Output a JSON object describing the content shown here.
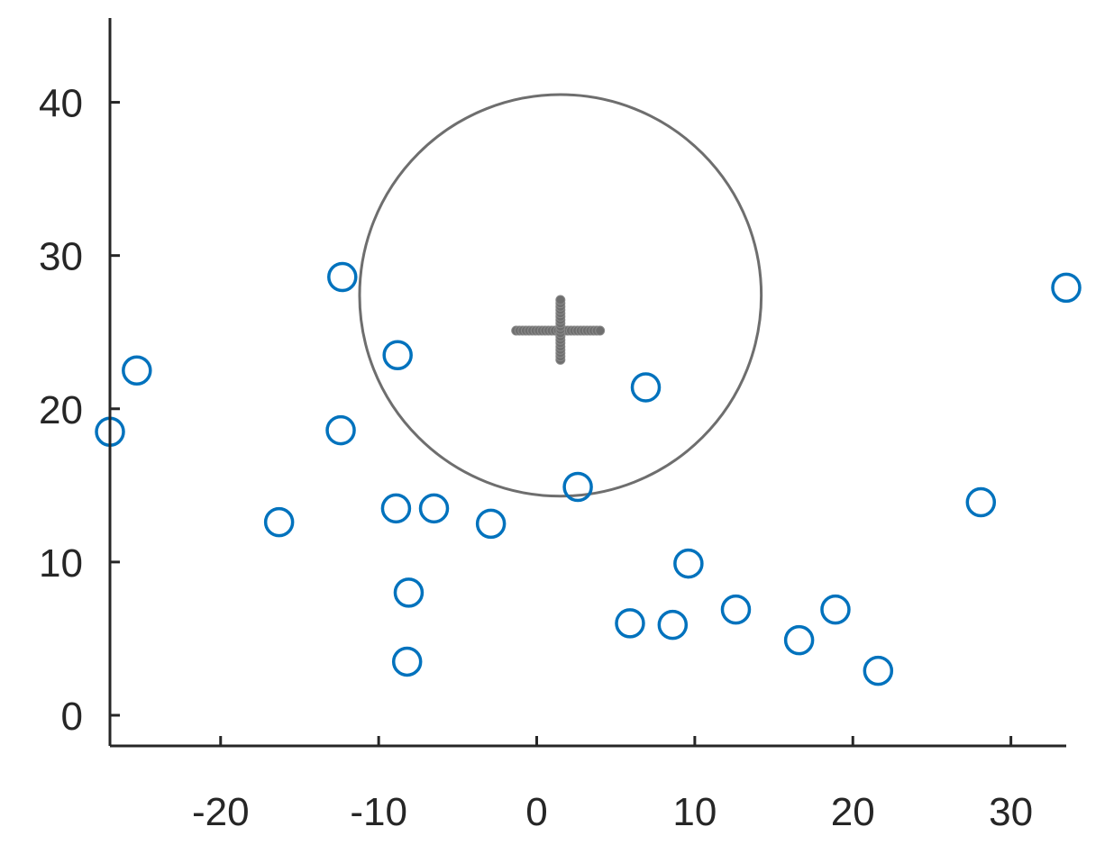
{
  "chart_data": {
    "type": "scatter",
    "title": "",
    "xlabel": "",
    "ylabel": "",
    "xlim": [
      -27,
      33.5
    ],
    "ylim": [
      -2,
      45.5
    ],
    "xticks": [
      -20,
      -10,
      0,
      10,
      20,
      30
    ],
    "yticks": [
      0,
      10,
      20,
      30,
      40
    ],
    "grid": false,
    "box": false,
    "series": [
      {
        "marker": "circle-open",
        "color": "#0072BD",
        "points": [
          [
            -27.0,
            18.5
          ],
          [
            -25.3,
            22.5
          ],
          [
            -12.3,
            28.6
          ],
          [
            -12.4,
            18.6
          ],
          [
            -8.8,
            23.5
          ],
          [
            -16.3,
            12.6
          ],
          [
            -8.9,
            13.5
          ],
          [
            -6.5,
            13.5
          ],
          [
            -2.9,
            12.5
          ],
          [
            -8.1,
            8.0
          ],
          [
            -8.2,
            3.5
          ],
          [
            2.6,
            14.9
          ],
          [
            6.9,
            21.4
          ],
          [
            5.9,
            6.0
          ],
          [
            8.6,
            5.9
          ],
          [
            9.6,
            9.9
          ],
          [
            12.6,
            6.9
          ],
          [
            16.6,
            4.9
          ],
          [
            18.9,
            6.9
          ],
          [
            21.6,
            2.9
          ],
          [
            28.1,
            13.9
          ],
          [
            33.5,
            27.9
          ]
        ]
      }
    ],
    "circle": {
      "center": [
        1.5,
        27.4
      ],
      "radius": 13.1,
      "color": "#6e6e6e"
    },
    "cross": {
      "center": [
        1.5,
        25.1
      ],
      "x_range": [
        -1.3,
        4.0
      ],
      "y_range": [
        23.2,
        27.1
      ],
      "color": "#6e6e6e"
    }
  }
}
